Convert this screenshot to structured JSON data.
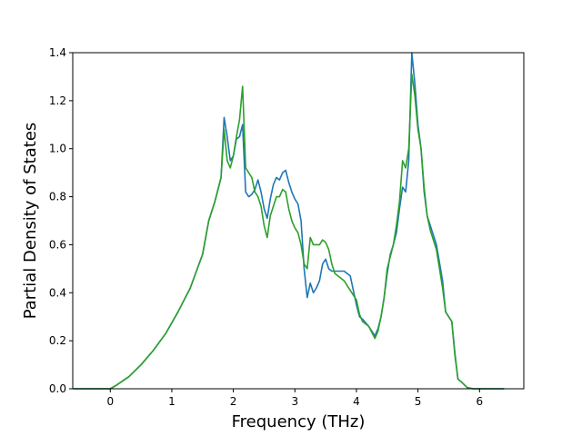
{
  "chart_data": {
    "type": "line",
    "title": "",
    "xlabel": "Frequency (THz)",
    "ylabel": "Partial Density of States",
    "xlim": [
      -0.61,
      6.72
    ],
    "ylim": [
      0,
      1.4
    ],
    "xticks": [
      0,
      1,
      2,
      3,
      4,
      5,
      6
    ],
    "yticks": [
      0.0,
      0.2,
      0.4,
      0.6,
      0.8,
      1.0,
      1.2,
      1.4
    ],
    "xtick_labels": [
      "0",
      "1",
      "2",
      "3",
      "4",
      "5",
      "6"
    ],
    "ytick_labels": [
      "0.0",
      "0.2",
      "0.4",
      "0.6",
      "0.8",
      "1.0",
      "1.2",
      "1.4"
    ],
    "grid": false,
    "legend": "none",
    "series": [
      {
        "color": "#1f77b4",
        "x": [
          -0.6,
          0.0,
          0.1,
          0.3,
          0.5,
          0.7,
          0.9,
          1.1,
          1.3,
          1.5,
          1.6,
          1.7,
          1.8,
          1.85,
          1.9,
          1.95,
          2.0,
          2.05,
          2.1,
          2.15,
          2.2,
          2.25,
          2.3,
          2.35,
          2.4,
          2.45,
          2.5,
          2.55,
          2.6,
          2.65,
          2.7,
          2.75,
          2.8,
          2.85,
          2.9,
          2.95,
          3.0,
          3.05,
          3.1,
          3.15,
          3.2,
          3.25,
          3.3,
          3.35,
          3.4,
          3.45,
          3.5,
          3.55,
          3.6,
          3.65,
          3.7,
          3.8,
          3.9,
          4.0,
          4.05,
          4.1,
          4.2,
          4.3,
          4.35,
          4.4,
          4.45,
          4.5,
          4.55,
          4.6,
          4.65,
          4.7,
          4.75,
          4.8,
          4.85,
          4.9,
          4.95,
          5.0,
          5.05,
          5.1,
          5.15,
          5.2,
          5.3,
          5.4,
          5.45,
          5.5,
          5.55,
          5.6,
          5.65,
          5.7,
          5.8,
          5.9,
          6.0,
          6.2,
          6.4
        ],
        "y": [
          0.0,
          0.0,
          0.015,
          0.05,
          0.1,
          0.16,
          0.23,
          0.32,
          0.42,
          0.56,
          0.7,
          0.78,
          0.88,
          1.13,
          1.05,
          0.95,
          0.97,
          1.04,
          1.05,
          1.1,
          0.82,
          0.8,
          0.81,
          0.83,
          0.87,
          0.82,
          0.75,
          0.71,
          0.79,
          0.85,
          0.88,
          0.87,
          0.9,
          0.91,
          0.86,
          0.82,
          0.79,
          0.77,
          0.7,
          0.5,
          0.38,
          0.44,
          0.4,
          0.42,
          0.45,
          0.52,
          0.54,
          0.5,
          0.49,
          0.49,
          0.49,
          0.49,
          0.47,
          0.35,
          0.3,
          0.29,
          0.26,
          0.22,
          0.25,
          0.3,
          0.38,
          0.48,
          0.56,
          0.6,
          0.65,
          0.75,
          0.84,
          0.82,
          0.95,
          1.4,
          1.27,
          1.1,
          1.0,
          0.82,
          0.72,
          0.68,
          0.6,
          0.45,
          0.32,
          0.3,
          0.28,
          0.15,
          0.04,
          0.03,
          0.005,
          0.0,
          0.0,
          0.0,
          0.0
        ]
      },
      {
        "color": "#2ca02c",
        "x": [
          -0.6,
          0.0,
          0.1,
          0.3,
          0.5,
          0.7,
          0.9,
          1.1,
          1.3,
          1.5,
          1.6,
          1.7,
          1.8,
          1.85,
          1.9,
          1.95,
          2.0,
          2.05,
          2.1,
          2.15,
          2.2,
          2.25,
          2.3,
          2.35,
          2.4,
          2.45,
          2.5,
          2.55,
          2.6,
          2.65,
          2.7,
          2.75,
          2.8,
          2.85,
          2.9,
          2.95,
          3.0,
          3.05,
          3.1,
          3.15,
          3.2,
          3.25,
          3.3,
          3.35,
          3.4,
          3.45,
          3.5,
          3.55,
          3.6,
          3.65,
          3.7,
          3.8,
          3.9,
          4.0,
          4.05,
          4.1,
          4.2,
          4.3,
          4.35,
          4.4,
          4.45,
          4.5,
          4.55,
          4.6,
          4.65,
          4.7,
          4.75,
          4.8,
          4.85,
          4.9,
          4.95,
          5.0,
          5.05,
          5.1,
          5.15,
          5.2,
          5.3,
          5.4,
          5.45,
          5.5,
          5.55,
          5.6,
          5.65,
          5.7,
          5.8,
          5.9,
          6.0,
          6.2,
          6.4
        ],
        "y": [
          0.0,
          0.0,
          0.015,
          0.05,
          0.1,
          0.16,
          0.23,
          0.32,
          0.42,
          0.56,
          0.7,
          0.78,
          0.88,
          1.08,
          0.95,
          0.92,
          0.97,
          1.05,
          1.12,
          1.26,
          0.92,
          0.9,
          0.88,
          0.82,
          0.8,
          0.76,
          0.68,
          0.63,
          0.72,
          0.76,
          0.8,
          0.8,
          0.83,
          0.82,
          0.75,
          0.7,
          0.67,
          0.65,
          0.6,
          0.52,
          0.5,
          0.63,
          0.6,
          0.6,
          0.6,
          0.62,
          0.61,
          0.58,
          0.52,
          0.48,
          0.47,
          0.45,
          0.41,
          0.37,
          0.31,
          0.28,
          0.26,
          0.21,
          0.24,
          0.3,
          0.38,
          0.5,
          0.55,
          0.6,
          0.68,
          0.78,
          0.95,
          0.92,
          1.0,
          1.31,
          1.22,
          1.08,
          1.0,
          0.84,
          0.72,
          0.66,
          0.58,
          0.42,
          0.32,
          0.3,
          0.28,
          0.14,
          0.04,
          0.03,
          0.005,
          0.0,
          0.0,
          0.0,
          0.0
        ]
      }
    ]
  }
}
